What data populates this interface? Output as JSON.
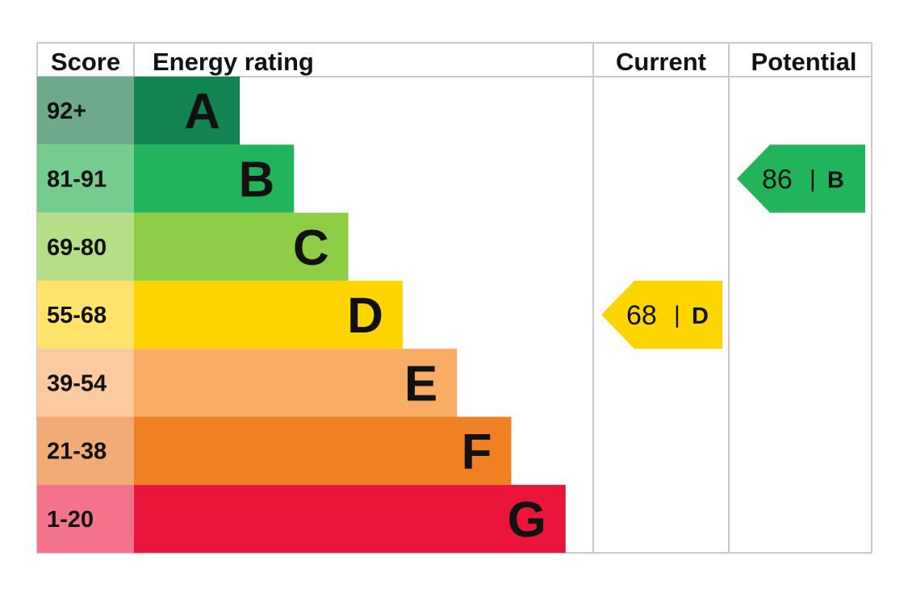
{
  "chart_data": {
    "type": "table",
    "headers": {
      "score": "Score",
      "rating": "Energy rating",
      "current": "Current",
      "potential": "Potential"
    },
    "bands": [
      {
        "score": "92+",
        "letter": "A",
        "color": "#128452",
        "score_bg": "#6fa88a"
      },
      {
        "score": "81-91",
        "letter": "B",
        "color": "#22b45a",
        "score_bg": "#76cc8e"
      },
      {
        "score": "69-80",
        "letter": "C",
        "color": "#8dce46",
        "score_bg": "#b6de87"
      },
      {
        "score": "55-68",
        "letter": "D",
        "color": "#ffd500",
        "score_bg": "#ffe36a"
      },
      {
        "score": "39-54",
        "letter": "E",
        "color": "#f9ac64",
        "score_bg": "#fccaa0"
      },
      {
        "score": "21-38",
        "letter": "F",
        "color": "#ef8023",
        "score_bg": "#f2ab76"
      },
      {
        "score": "1-20",
        "letter": "G",
        "color": "#e9153b",
        "score_bg": "#f3738a"
      }
    ],
    "current": {
      "value": 68,
      "separator": "|",
      "letter": "D",
      "color": "#ffd500"
    },
    "potential": {
      "value": 86,
      "separator": "|",
      "letter": "B",
      "color": "#22b45a"
    },
    "grid_color": "#c8c8c8"
  }
}
